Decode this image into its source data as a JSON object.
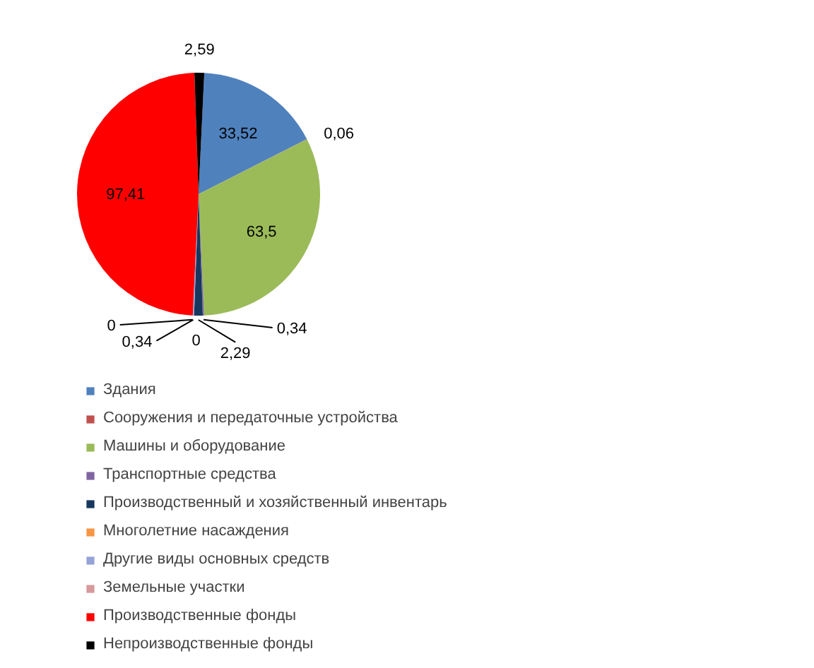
{
  "chart_data": {
    "type": "pie",
    "categories": [
      "Здания",
      "Сооружения и передаточные устройства",
      "Машины и оборудование",
      "Транспортные средства",
      "Производственный и хозяйственный инвентарь",
      "Многолетние насаждения",
      "Другие виды основных средств",
      "Земельные участки",
      "Производственные фонды",
      "Непроизводственные фонды"
    ],
    "values": [
      33.52,
      0.06,
      63.5,
      0.34,
      2.29,
      0,
      0.34,
      0,
      97.41,
      2.59
    ],
    "colors": [
      "#4f81bd",
      "#c0504d",
      "#9bbb59",
      "#8064a2",
      "#17375e",
      "#f79646",
      "#95a3d6",
      "#d8999a",
      "#ff0000",
      "#000000"
    ],
    "value_labels": [
      "33,52",
      "0,06",
      "63,5",
      "0,34",
      "2,29",
      "0",
      "0,34",
      "0",
      "97,41",
      "2,59"
    ],
    "legend": "bottom"
  }
}
